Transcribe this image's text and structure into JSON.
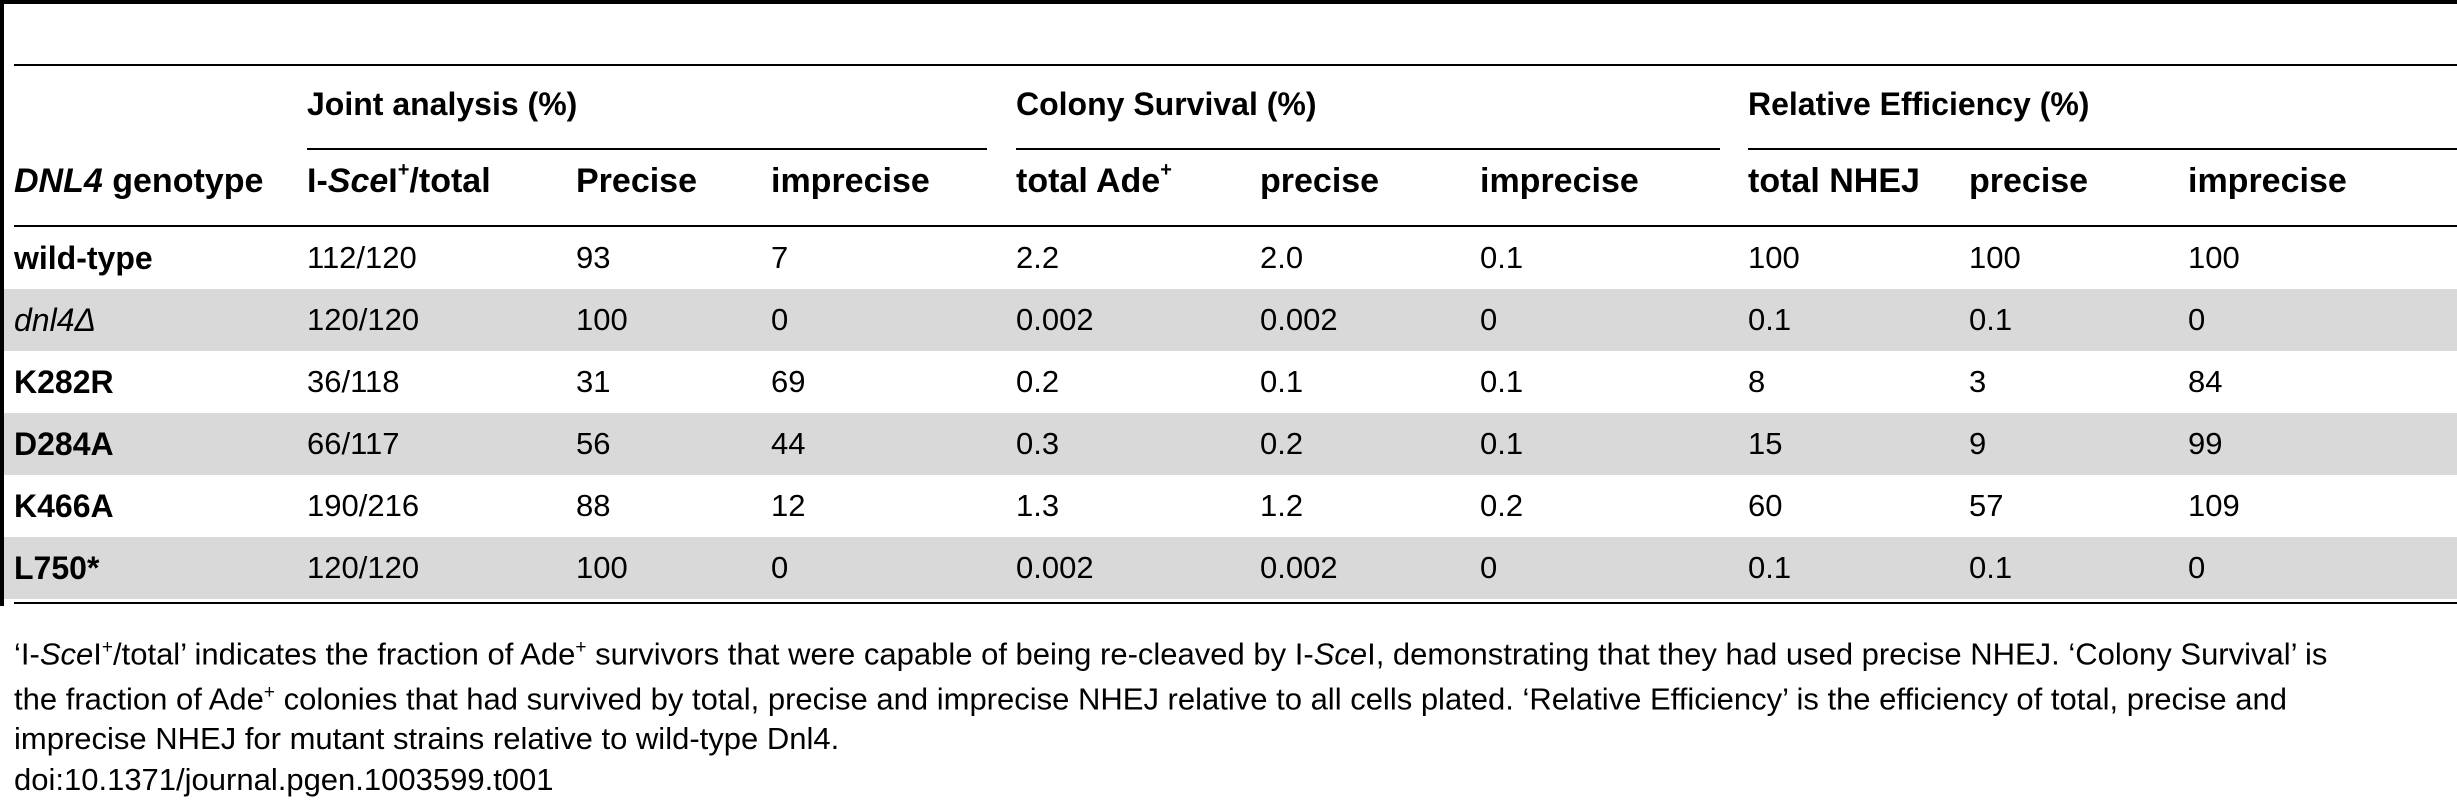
{
  "group_headers": {
    "joint": "Joint analysis (%)",
    "colony": "Colony Survival (%)",
    "relative": "Relative Efficiency (%)"
  },
  "columns": {
    "genotype_italic": "DNL4",
    "genotype_rest": " genotype",
    "isce_pre": "I-",
    "isce_italic": "Sce",
    "isce_post": "I",
    "isce_sup": "+",
    "isce_tail": "/total",
    "precise_joint": "Precise",
    "imprecise_joint": "imprecise",
    "total_ade": "total Ade",
    "total_ade_sup": "+",
    "precise_colony": "precise",
    "imprecise_colony": "imprecise",
    "total_nhej": "total NHEJ",
    "precise_rel": "precise",
    "imprecise_rel": "imprecise"
  },
  "rows": [
    {
      "genotype": "wild-type",
      "isce": "112/120",
      "precise": "93",
      "imprecise": "7",
      "total_ade": "2.2",
      "cs_precise": "2.0",
      "cs_imprecise": "0.1",
      "total_nhej": "100",
      "re_precise": "100",
      "re_imprecise": "100"
    },
    {
      "genotype": "dnl4Δ",
      "isce": "120/120",
      "precise": "100",
      "imprecise": "0",
      "total_ade": "0.002",
      "cs_precise": "0.002",
      "cs_imprecise": "0",
      "total_nhej": "0.1",
      "re_precise": "0.1",
      "re_imprecise": "0"
    },
    {
      "genotype": "K282R",
      "isce": "36/118",
      "precise": "31",
      "imprecise": "69",
      "total_ade": "0.2",
      "cs_precise": "0.1",
      "cs_imprecise": "0.1",
      "total_nhej": "8",
      "re_precise": "3",
      "re_imprecise": "84"
    },
    {
      "genotype": "D284A",
      "isce": "66/117",
      "precise": "56",
      "imprecise": "44",
      "total_ade": "0.3",
      "cs_precise": "0.2",
      "cs_imprecise": "0.1",
      "total_nhej": "15",
      "re_precise": "9",
      "re_imprecise": "99"
    },
    {
      "genotype": "K466A",
      "isce": "190/216",
      "precise": "88",
      "imprecise": "12",
      "total_ade": "1.3",
      "cs_precise": "1.2",
      "cs_imprecise": "0.2",
      "total_nhej": "60",
      "re_precise": "57",
      "re_imprecise": "109"
    },
    {
      "genotype": "L750*",
      "isce": "120/120",
      "precise": "100",
      "imprecise": "0",
      "total_ade": "0.002",
      "cs_precise": "0.002",
      "cs_imprecise": "0",
      "total_nhej": "0.1",
      "re_precise": "0.1",
      "re_imprecise": "0"
    }
  ],
  "footnote": {
    "line1_a": "‘I-",
    "line1_b": "Sce",
    "line1_c": "I",
    "line1_d": "+",
    "line1_e": "/total’ indicates the fraction of Ade",
    "line1_f": "+",
    "line1_g": " survivors that were capable of being re-cleaved by I-",
    "line1_h": "Sce",
    "line1_i": "I, demonstrating that they had used precise NHEJ. ‘Colony Survival’ is",
    "line2_a": "the fraction of Ade",
    "line2_b": "+",
    "line2_c": " colonies that had survived by total, precise and imprecise NHEJ relative to all cells plated. ‘Relative Efficiency’ is the efficiency of total, precise and",
    "line3": "imprecise NHEJ for mutant strains relative to wild-type Dnl4."
  },
  "doi": "doi:10.1371/journal.pgen.1003599.t001"
}
